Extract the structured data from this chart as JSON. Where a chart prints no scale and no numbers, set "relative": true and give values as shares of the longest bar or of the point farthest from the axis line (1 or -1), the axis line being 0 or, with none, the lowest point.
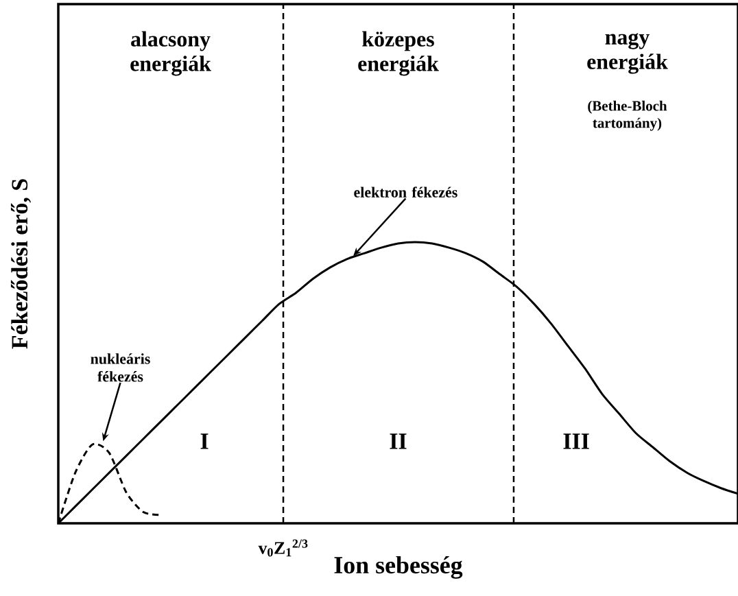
{
  "chart_data": {
    "type": "line",
    "relative": true,
    "xlabel": "Ion sebesség",
    "ylabel": "Fékeződési erő, S",
    "categories": [
      null,
      null,
      null,
      null,
      null,
      null,
      null,
      null,
      null,
      null,
      null,
      null,
      null,
      null,
      null,
      null,
      null,
      null,
      null,
      null,
      null,
      null,
      null,
      null,
      null,
      null,
      null,
      null,
      null,
      null,
      null,
      null,
      null,
      null,
      null,
      null,
      null,
      null,
      null,
      null,
      null
    ],
    "series": [
      {
        "color": "#000000",
        "line_style": "solid",
        "values": [
          0,
          0.06,
          0.12,
          0.18,
          0.24,
          0.3,
          0.36,
          0.42,
          0.48,
          0.54,
          0.6,
          0.66,
          0.72,
          0.78,
          0.82,
          0.87,
          0.91,
          0.94,
          0.96,
          0.98,
          0.995,
          1.0,
          0.995,
          0.98,
          0.96,
          0.93,
          0.885,
          0.84,
          0.78,
          0.71,
          0.63,
          0.55,
          0.46,
          0.39,
          0.32,
          0.27,
          0.22,
          0.18,
          0.15,
          0.125,
          0.105
        ]
      },
      {
        "color": "#000000",
        "line_style": "dashed",
        "values": [
          0,
          0.18,
          0.28,
          0.25,
          0.11,
          0.04,
          0.03,
          null,
          null,
          null,
          null,
          null,
          null,
          null,
          null,
          null,
          null,
          null,
          null,
          null,
          null,
          null,
          null,
          null,
          null,
          null,
          null,
          null,
          null,
          null,
          null,
          null,
          null,
          null,
          null,
          null,
          null,
          null,
          null,
          null,
          null
        ]
      }
    ],
    "ref_lines": [
      {
        "axis": "x",
        "label": "v$_{0}$Z$_{1}$$^{2/3}$",
        "line_style": "dashed"
      },
      {
        "axis": "x",
        "line_style": "dashed"
      }
    ],
    "annotations": [
      "alacsony energiák",
      "közepes energiák",
      "nagy energiák",
      "(Bethe-Bloch tartomány)",
      "I",
      "II",
      "III",
      "elektron fékezés",
      "nukleáris fékezés"
    ]
  }
}
